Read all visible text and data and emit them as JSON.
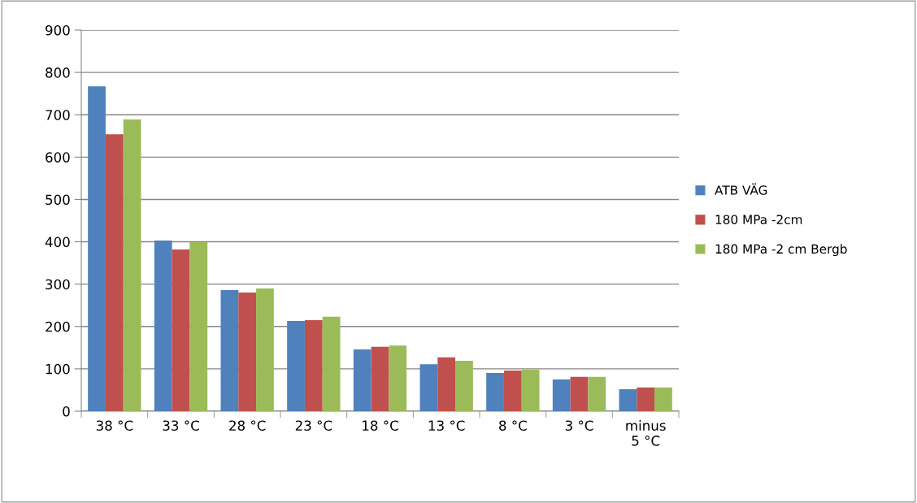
{
  "chart_data": {
    "type": "bar",
    "categories": [
      "38 °C",
      "33 °C",
      "28 °C",
      "23 °C",
      "18 °C",
      "13 °C",
      "8 °C",
      "3 °C",
      "minus\n5 °C"
    ],
    "series": [
      {
        "name": "ATB VÄG",
        "color": "#4f81bd",
        "values": [
          767,
          403,
          286,
          213,
          146,
          111,
          90,
          75,
          52
        ]
      },
      {
        "name": "180 MPa -2cm",
        "color": "#c0504d",
        "values": [
          654,
          382,
          280,
          215,
          152,
          127,
          96,
          81,
          56
        ]
      },
      {
        "name": "180 MPa -2 cm Bergb",
        "color": "#9bbb59",
        "values": [
          689,
          399,
          290,
          223,
          155,
          119,
          98,
          81,
          56
        ]
      }
    ],
    "ylim": [
      0,
      900
    ],
    "yticks": [
      0,
      100,
      200,
      300,
      400,
      500,
      600,
      700,
      800,
      900
    ],
    "grid": "y",
    "legend": "right"
  }
}
